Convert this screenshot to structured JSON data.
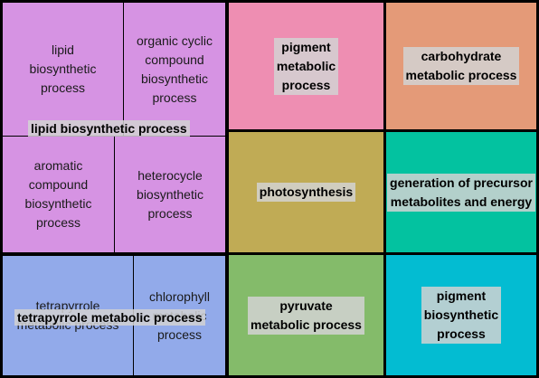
{
  "colors": {
    "lipid_group": "#d693e3",
    "tetrapyrrole_group": "#92aaea",
    "pigment_metabolic": "#ee8eb2",
    "carbohydrate_metabolic": "#e49a78",
    "photosynthesis": "#c0ab55",
    "generation_of_precursor": "#03c2a0",
    "pyruvate_metabolic": "#84bb6a",
    "pigment_biosynthetic": "#03bcd2"
  },
  "groups": {
    "lipid": {
      "label": "lipid biosynthetic process",
      "tiles": [
        "lipid\nbiosynthetic\nprocess",
        "organic cyclic\ncompound\nbiosynthetic\nprocess",
        "aromatic\ncompound\nbiosynthetic\nprocess",
        "heterocycle\nbiosynthetic\nprocess"
      ]
    },
    "tetrapyrrole": {
      "label": "tetrapyrrole metabolic process",
      "tiles": [
        "tetrapyrrole\nmetabolic process",
        "chlorophyll\nmetabolic\nprocess"
      ]
    }
  },
  "tiles": {
    "pigment_metabolic": "pigment\nmetabolic\nprocess",
    "carbohydrate_metabolic": "carbohydrate\nmetabolic process",
    "photosynthesis": "photosynthesis",
    "generation_of_precursor": "generation of precursor\nmetabolites and energy",
    "pyruvate_metabolic": "pyruvate\nmetabolic process",
    "pigment_biosynthetic": "pigment\nbiosynthetic\nprocess"
  }
}
